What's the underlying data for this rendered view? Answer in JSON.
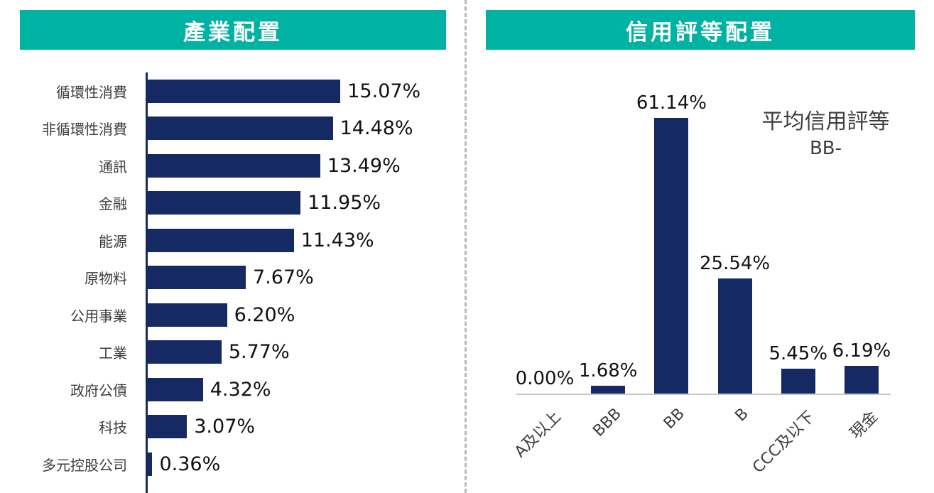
{
  "colors": {
    "header_bg": "#00B2A2",
    "bar": "#152A62",
    "baseline_axis": "#C9C9C9",
    "category_text": "#3D3D3D",
    "value_text": "#111111"
  },
  "chart_data": [
    {
      "type": "bar",
      "orientation": "horizontal",
      "title": "產業配置",
      "categories": [
        "循環性消費",
        "非循環性消費",
        "通訊",
        "金融",
        "能源",
        "原物料",
        "公用事業",
        "工業",
        "政府公債",
        "科技",
        "多元控股公司"
      ],
      "values": [
        15.07,
        14.48,
        13.49,
        11.95,
        11.43,
        7.67,
        6.2,
        5.77,
        4.32,
        3.07,
        0.36
      ],
      "value_labels": [
        "15.07%",
        "14.48%",
        "13.49%",
        "11.95%",
        "11.43%",
        "7.67%",
        "6.20%",
        "5.77%",
        "4.32%",
        "3.07%",
        "0.36%"
      ],
      "xlim": [
        0,
        16
      ],
      "grid": false,
      "legend": "none"
    },
    {
      "type": "bar",
      "orientation": "vertical",
      "title": "信用評等配置",
      "categories": [
        "A及以上",
        "BBB",
        "BB",
        "B",
        "CCC及以下",
        "現金"
      ],
      "values": [
        0.0,
        1.68,
        61.14,
        25.54,
        5.45,
        6.19
      ],
      "value_labels": [
        "0.00%",
        "1.68%",
        "61.14%",
        "25.54%",
        "5.45%",
        "6.19%"
      ],
      "ylim": [
        0,
        70
      ],
      "grid": false,
      "legend": "none",
      "annotation": {
        "line1": "平均信用評等",
        "line2": "BB-"
      }
    }
  ]
}
